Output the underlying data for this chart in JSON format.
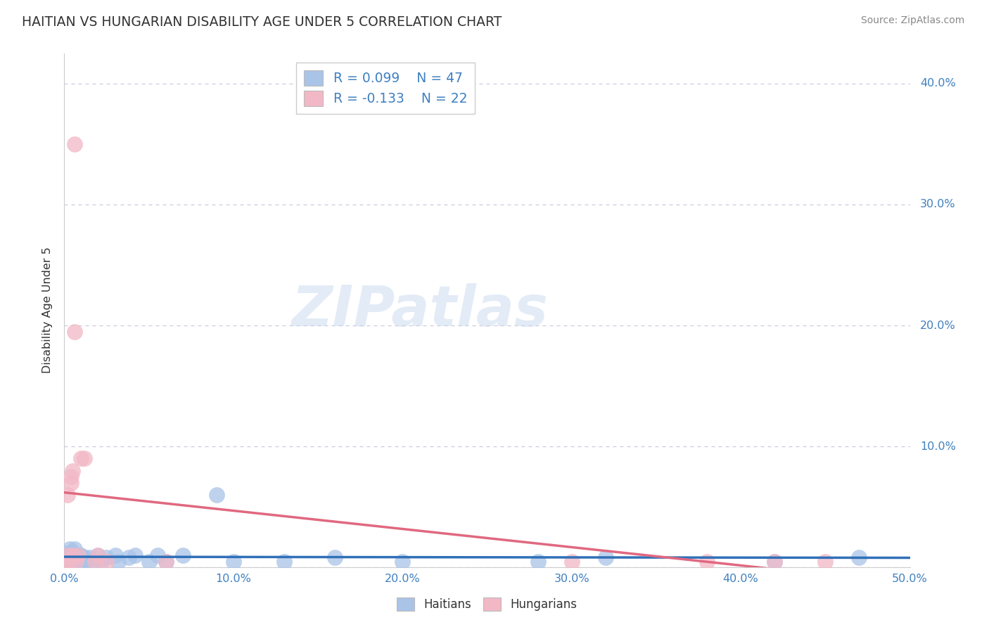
{
  "title": "HAITIAN VS HUNGARIAN DISABILITY AGE UNDER 5 CORRELATION CHART",
  "source": "Source: ZipAtlas.com",
  "ylabel": "Disability Age Under 5",
  "xmin": 0.0,
  "xmax": 0.5,
  "ymin": 0.0,
  "ymax": 0.425,
  "ytick_vals": [
    0.0,
    0.1,
    0.2,
    0.3,
    0.4
  ],
  "ytick_labels": [
    "0.0%",
    "10.0%",
    "20.0%",
    "30.0%",
    "40.0%"
  ],
  "xtick_vals": [
    0.0,
    0.1,
    0.2,
    0.3,
    0.4,
    0.5
  ],
  "xtick_labels": [
    "0.0%",
    "10.0%",
    "20.0%",
    "30.0%",
    "40.0%",
    "50.0%"
  ],
  "r_haitian": "0.099",
  "n_haitian": "47",
  "r_hungarian": "-0.133",
  "n_hungarian": "22",
  "haitian_color": "#aac4e8",
  "hungarian_color": "#f2b8c6",
  "haitian_line_color": "#3070b8",
  "hungarian_line_color": "#e06880",
  "background_color": "#ffffff",
  "grid_color": "#ccccdd",
  "watermark": "ZIPatlas",
  "haitian_x": [
    0.001,
    0.002,
    0.002,
    0.003,
    0.003,
    0.003,
    0.004,
    0.004,
    0.005,
    0.005,
    0.005,
    0.006,
    0.006,
    0.006,
    0.007,
    0.007,
    0.008,
    0.008,
    0.009,
    0.009,
    0.01,
    0.01,
    0.011,
    0.012,
    0.013,
    0.015,
    0.017,
    0.02,
    0.022,
    0.025,
    0.03,
    0.032,
    0.038,
    0.042,
    0.05,
    0.055,
    0.06,
    0.07,
    0.09,
    0.1,
    0.13,
    0.16,
    0.2,
    0.28,
    0.32,
    0.42,
    0.47
  ],
  "haitian_y": [
    0.005,
    0.008,
    0.012,
    0.005,
    0.01,
    0.015,
    0.005,
    0.01,
    0.003,
    0.008,
    0.013,
    0.005,
    0.01,
    0.015,
    0.005,
    0.01,
    0.005,
    0.01,
    0.005,
    0.01,
    0.005,
    0.01,
    0.005,
    0.008,
    0.005,
    0.008,
    0.005,
    0.01,
    0.005,
    0.008,
    0.01,
    0.005,
    0.008,
    0.01,
    0.005,
    0.01,
    0.005,
    0.01,
    0.06,
    0.005,
    0.005,
    0.008,
    0.005,
    0.005,
    0.008,
    0.005,
    0.008
  ],
  "hungarian_x": [
    0.001,
    0.002,
    0.002,
    0.003,
    0.004,
    0.004,
    0.005,
    0.005,
    0.006,
    0.006,
    0.007,
    0.008,
    0.01,
    0.012,
    0.018,
    0.02,
    0.025,
    0.06,
    0.3,
    0.38,
    0.42,
    0.45
  ],
  "hungarian_y": [
    0.005,
    0.01,
    0.06,
    0.005,
    0.07,
    0.075,
    0.01,
    0.08,
    0.195,
    0.35,
    0.005,
    0.01,
    0.09,
    0.09,
    0.005,
    0.01,
    0.005,
    0.005,
    0.005,
    0.005,
    0.005,
    0.005
  ]
}
